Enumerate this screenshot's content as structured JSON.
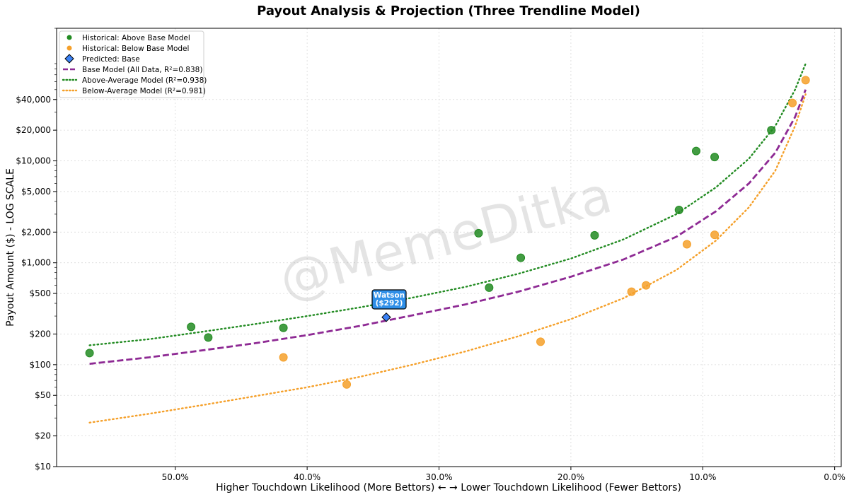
{
  "chart_data": {
    "type": "scatter",
    "title": "Payout Analysis & Projection (Three Trendline Model)",
    "xlabel": "Higher Touchdown Likelihood (More Bettors) ← → Lower Touchdown Likelihood (Fewer Bettors)",
    "ylabel": "Payout Amount ($) - LOG SCALE",
    "x_scale": "linear",
    "x_inverted": true,
    "xlim": [
      59,
      -0.5
    ],
    "y_scale": "log",
    "ylim": [
      10,
      200000
    ],
    "x_ticks": [
      {
        "value": 50,
        "label": "50.0%"
      },
      {
        "value": 40,
        "label": "40.0%"
      },
      {
        "value": 30,
        "label": "30.0%"
      },
      {
        "value": 20,
        "label": "20.0%"
      },
      {
        "value": 10,
        "label": "10.0%"
      },
      {
        "value": 0,
        "label": "0.0%"
      }
    ],
    "y_ticks": [
      {
        "value": 10,
        "label": "$10"
      },
      {
        "value": 20,
        "label": "$20"
      },
      {
        "value": 50,
        "label": "$50"
      },
      {
        "value": 100,
        "label": "$100"
      },
      {
        "value": 200,
        "label": "$200"
      },
      {
        "value": 500,
        "label": "$500"
      },
      {
        "value": 1000,
        "label": "$1,000"
      },
      {
        "value": 2000,
        "label": "$2,000"
      },
      {
        "value": 5000,
        "label": "$5,000"
      },
      {
        "value": 10000,
        "label": "$10,000"
      },
      {
        "value": 20000,
        "label": "$20,000"
      },
      {
        "value": 40000,
        "label": "$40,000"
      }
    ],
    "grid": true,
    "legend_position": "upper-left",
    "legend": [
      {
        "key": "above",
        "label": "Historical: Above Base Model"
      },
      {
        "key": "below",
        "label": "Historical: Below Base Model"
      },
      {
        "key": "predicted",
        "label": "Predicted: Base"
      },
      {
        "key": "base",
        "label": "Base Model (All Data, R²=0.838)"
      },
      {
        "key": "aboveModel",
        "label": "Above-Average Model (R²=0.938)"
      },
      {
        "key": "belowModel",
        "label": "Below-Average Model (R²=0.981)"
      }
    ],
    "scatter_series": [
      {
        "key": "above",
        "name": "Historical: Above Base Model",
        "color": "#228B22",
        "points": [
          {
            "x": 56.5,
            "y": 130
          },
          {
            "x": 48.8,
            "y": 235
          },
          {
            "x": 47.5,
            "y": 185
          },
          {
            "x": 41.8,
            "y": 230
          },
          {
            "x": 27.0,
            "y": 1950
          },
          {
            "x": 26.2,
            "y": 570
          },
          {
            "x": 23.8,
            "y": 1120
          },
          {
            "x": 18.2,
            "y": 1860
          },
          {
            "x": 11.8,
            "y": 3300
          },
          {
            "x": 10.5,
            "y": 12500
          },
          {
            "x": 9.1,
            "y": 10900
          },
          {
            "x": 4.8,
            "y": 20000
          }
        ]
      },
      {
        "key": "below",
        "name": "Historical: Below Base Model",
        "color": "#F5A02A",
        "points": [
          {
            "x": 41.8,
            "y": 118
          },
          {
            "x": 37.0,
            "y": 64
          },
          {
            "x": 22.3,
            "y": 168
          },
          {
            "x": 15.4,
            "y": 520
          },
          {
            "x": 14.3,
            "y": 600
          },
          {
            "x": 11.2,
            "y": 1520
          },
          {
            "x": 9.1,
            "y": 1880
          },
          {
            "x": 3.2,
            "y": 37000
          },
          {
            "x": 2.2,
            "y": 62000
          }
        ]
      }
    ],
    "predicted": {
      "name": "Watson",
      "x": 34.0,
      "y": 292,
      "color": "#3B82F6",
      "label_line1": "Watson",
      "label_line2": "($292)"
    },
    "trendlines": [
      {
        "key": "aboveModel",
        "name": "Above-Average Model (R²=0.938)",
        "color": "#228B22",
        "style": "dotted",
        "points": [
          [
            56.5,
            155
          ],
          [
            52,
            178
          ],
          [
            48,
            210
          ],
          [
            44,
            250
          ],
          [
            40,
            300
          ],
          [
            36,
            365
          ],
          [
            32,
            455
          ],
          [
            28,
            580
          ],
          [
            24,
            780
          ],
          [
            20,
            1100
          ],
          [
            16,
            1700
          ],
          [
            12,
            3000
          ],
          [
            9,
            5500
          ],
          [
            6.5,
            10500
          ],
          [
            4.5,
            22000
          ],
          [
            3,
            50000
          ],
          [
            2.2,
            90000
          ]
        ]
      },
      {
        "key": "base",
        "name": "Base Model (All Data, R²=0.838)",
        "color": "#8E2A94",
        "style": "dashed",
        "points": [
          [
            56.5,
            102
          ],
          [
            52,
            118
          ],
          [
            48,
            138
          ],
          [
            44,
            162
          ],
          [
            40,
            195
          ],
          [
            36,
            240
          ],
          [
            32,
            305
          ],
          [
            28,
            390
          ],
          [
            24,
            520
          ],
          [
            20,
            730
          ],
          [
            16,
            1080
          ],
          [
            12,
            1800
          ],
          [
            9,
            3200
          ],
          [
            6.5,
            6000
          ],
          [
            4.5,
            12000
          ],
          [
            3,
            27000
          ],
          [
            2.2,
            50000
          ]
        ]
      },
      {
        "key": "belowModel",
        "name": "Below-Average Model (R²=0.981)",
        "color": "#F5A02A",
        "style": "dotted",
        "points": [
          [
            56.5,
            27
          ],
          [
            52,
            33
          ],
          [
            48,
            40
          ],
          [
            44,
            49
          ],
          [
            40,
            60
          ],
          [
            36,
            76
          ],
          [
            32,
            100
          ],
          [
            28,
            135
          ],
          [
            24,
            190
          ],
          [
            20,
            280
          ],
          [
            16,
            450
          ],
          [
            12,
            850
          ],
          [
            9,
            1650
          ],
          [
            6.5,
            3500
          ],
          [
            4.5,
            8000
          ],
          [
            3,
            22000
          ],
          [
            2.2,
            45000
          ]
        ]
      }
    ],
    "watermark": "@MemeDitka"
  }
}
